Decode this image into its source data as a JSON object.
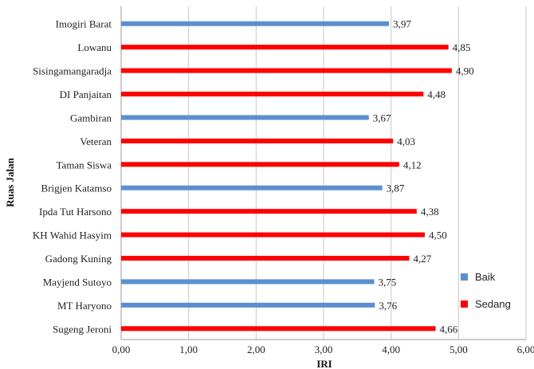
{
  "chart_data": {
    "type": "bar",
    "orientation": "horizontal",
    "ylabel": "Ruas Jalan",
    "xlabel": "IRI",
    "xlim": [
      0,
      6
    ],
    "xticks": [
      "0,00",
      "1,00",
      "2,00",
      "3,00",
      "4,00",
      "5,00",
      "6,00"
    ],
    "grid": true,
    "legend_position": "right",
    "categories": [
      "Imogiri Barat",
      "Lowanu",
      "Sisingamangaradja",
      "DI Panjaitan",
      "Gambiran",
      "Veteran",
      "Taman Siswa",
      "Brigjen Katamso",
      "Ipda Tut Harsono",
      "KH Wahid Hasyim",
      "Gadong Kuning",
      "Mayjend Sutoyo",
      "MT Haryono",
      "Sugeng Jeroni"
    ],
    "values": [
      3.97,
      4.85,
      4.9,
      4.48,
      3.67,
      4.03,
      4.12,
      3.87,
      4.38,
      4.5,
      4.27,
      3.75,
      3.76,
      4.66
    ],
    "value_labels": [
      "3,97",
      "4,85",
      "4,90",
      "4,48",
      "3,67",
      "4,03",
      "4,12",
      "3,87",
      "4,38",
      "4,50",
      "4,27",
      "3,75",
      "3,76",
      "4,66"
    ],
    "class": [
      "Baik",
      "Sedang",
      "Sedang",
      "Sedang",
      "Baik",
      "Sedang",
      "Sedang",
      "Baik",
      "Sedang",
      "Sedang",
      "Sedang",
      "Baik",
      "Baik",
      "Sedang"
    ],
    "legend": [
      {
        "name": "Baik",
        "color": "#5b8fd0"
      },
      {
        "name": "Sedang",
        "color": "#ff0000"
      }
    ]
  }
}
